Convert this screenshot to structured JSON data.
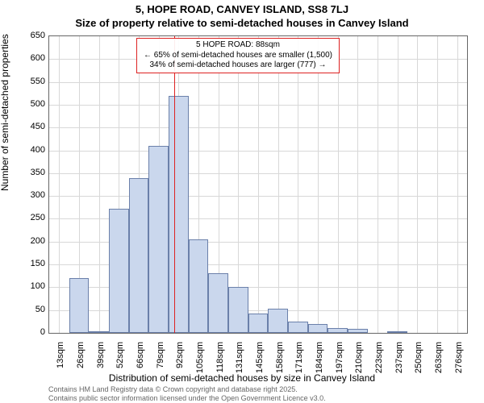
{
  "title_line1": "5, HOPE ROAD, CANVEY ISLAND, SS8 7LJ",
  "title_line2": "Size of property relative to semi-detached houses in Canvey Island",
  "yaxis_title": "Number of semi-detached properties",
  "xaxis_title": "Distribution of semi-detached houses by size in Canvey Island",
  "footer_line1": "Contains HM Land Registry data © Crown copyright and database right 2025.",
  "footer_line2": "Contains public sector information licensed under the Open Government Licence v3.0.",
  "chart": {
    "type": "histogram",
    "bar_fill": "#cad7ed",
    "bar_stroke": "#6b80aa",
    "grid_color": "#d8d8d8",
    "background_color": "#ffffff",
    "ref_line_color": "#d22",
    "annotation_border": "#d22",
    "ylim": [
      0,
      650
    ],
    "ytick_step": 50,
    "yticks": [
      0,
      50,
      100,
      150,
      200,
      250,
      300,
      350,
      400,
      450,
      500,
      550,
      600,
      650
    ],
    "xticks": [
      "13sqm",
      "26sqm",
      "39sqm",
      "52sqm",
      "66sqm",
      "79sqm",
      "92sqm",
      "105sqm",
      "118sqm",
      "131sqm",
      "145sqm",
      "158sqm",
      "171sqm",
      "184sqm",
      "197sqm",
      "210sqm",
      "223sqm",
      "237sqm",
      "250sqm",
      "263sqm",
      "276sqm"
    ],
    "values": [
      0,
      120,
      3,
      272,
      340,
      410,
      520,
      205,
      130,
      100,
      42,
      53,
      25,
      20,
      10,
      8,
      0,
      3,
      0,
      0,
      0
    ],
    "ref_line_index": 6,
    "ref_line_offset": -0.2,
    "annotation": {
      "line1": "5 HOPE ROAD: 88sqm",
      "line2": "← 65% of semi-detached houses are smaller (1,500)",
      "line3": "34% of semi-detached houses are larger (777) →"
    }
  }
}
